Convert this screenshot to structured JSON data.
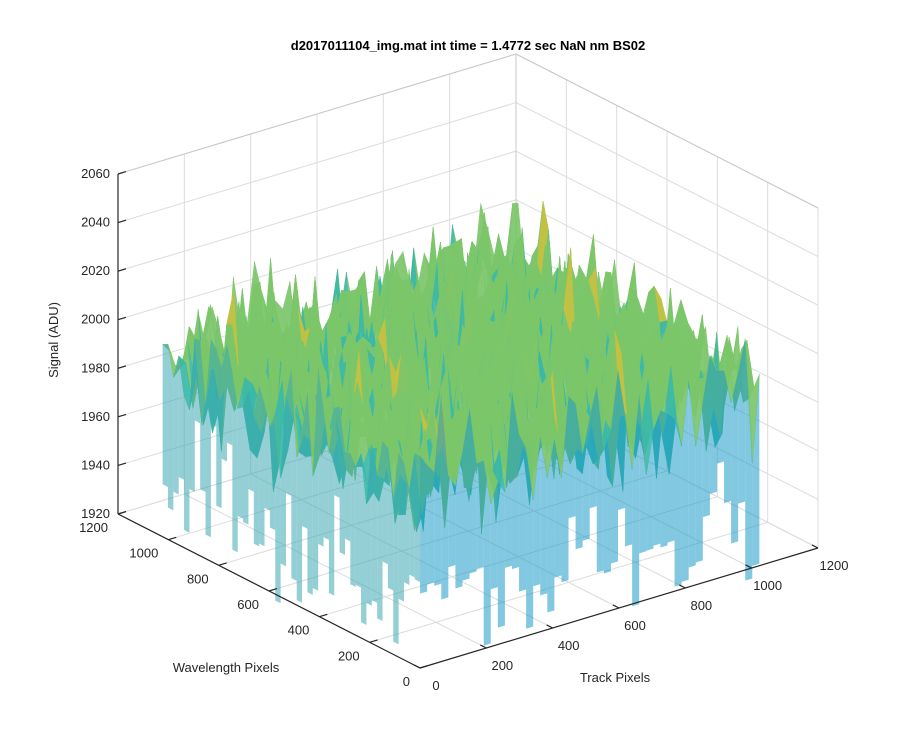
{
  "chart_data": {
    "type": "surface",
    "title": "d2017011104_img.mat int time = 1.4772 sec  NaN nm BS02",
    "xlabel": "Track Pixels",
    "ylabel": "Wavelength Pixels",
    "zlabel": "Signal (ADU)",
    "xlim": [
      0,
      1200
    ],
    "ylim": [
      0,
      1200
    ],
    "zlim": [
      1920,
      2060
    ],
    "x_ticks": [
      "0",
      "200",
      "400",
      "600",
      "800",
      "1000",
      "1200"
    ],
    "y_ticks": [
      "0",
      "200",
      "400",
      "600",
      "800",
      "1000",
      "1200"
    ],
    "z_ticks": [
      "1920",
      "1940",
      "1960",
      "1980",
      "2000",
      "2020",
      "2040",
      "2060"
    ],
    "grid": true,
    "colormap": [
      "#0072bd",
      "#1fa0c8",
      "#3bb8a8",
      "#7cc66a",
      "#c7c040",
      "#f0d020"
    ],
    "surface": {
      "x_range": [
        1,
        1024
      ],
      "y_range": [
        1,
        1024
      ],
      "mean": 1995,
      "typical_range": [
        1935,
        2045
      ],
      "min_approx": 1925,
      "max_approx": 2050
    }
  }
}
